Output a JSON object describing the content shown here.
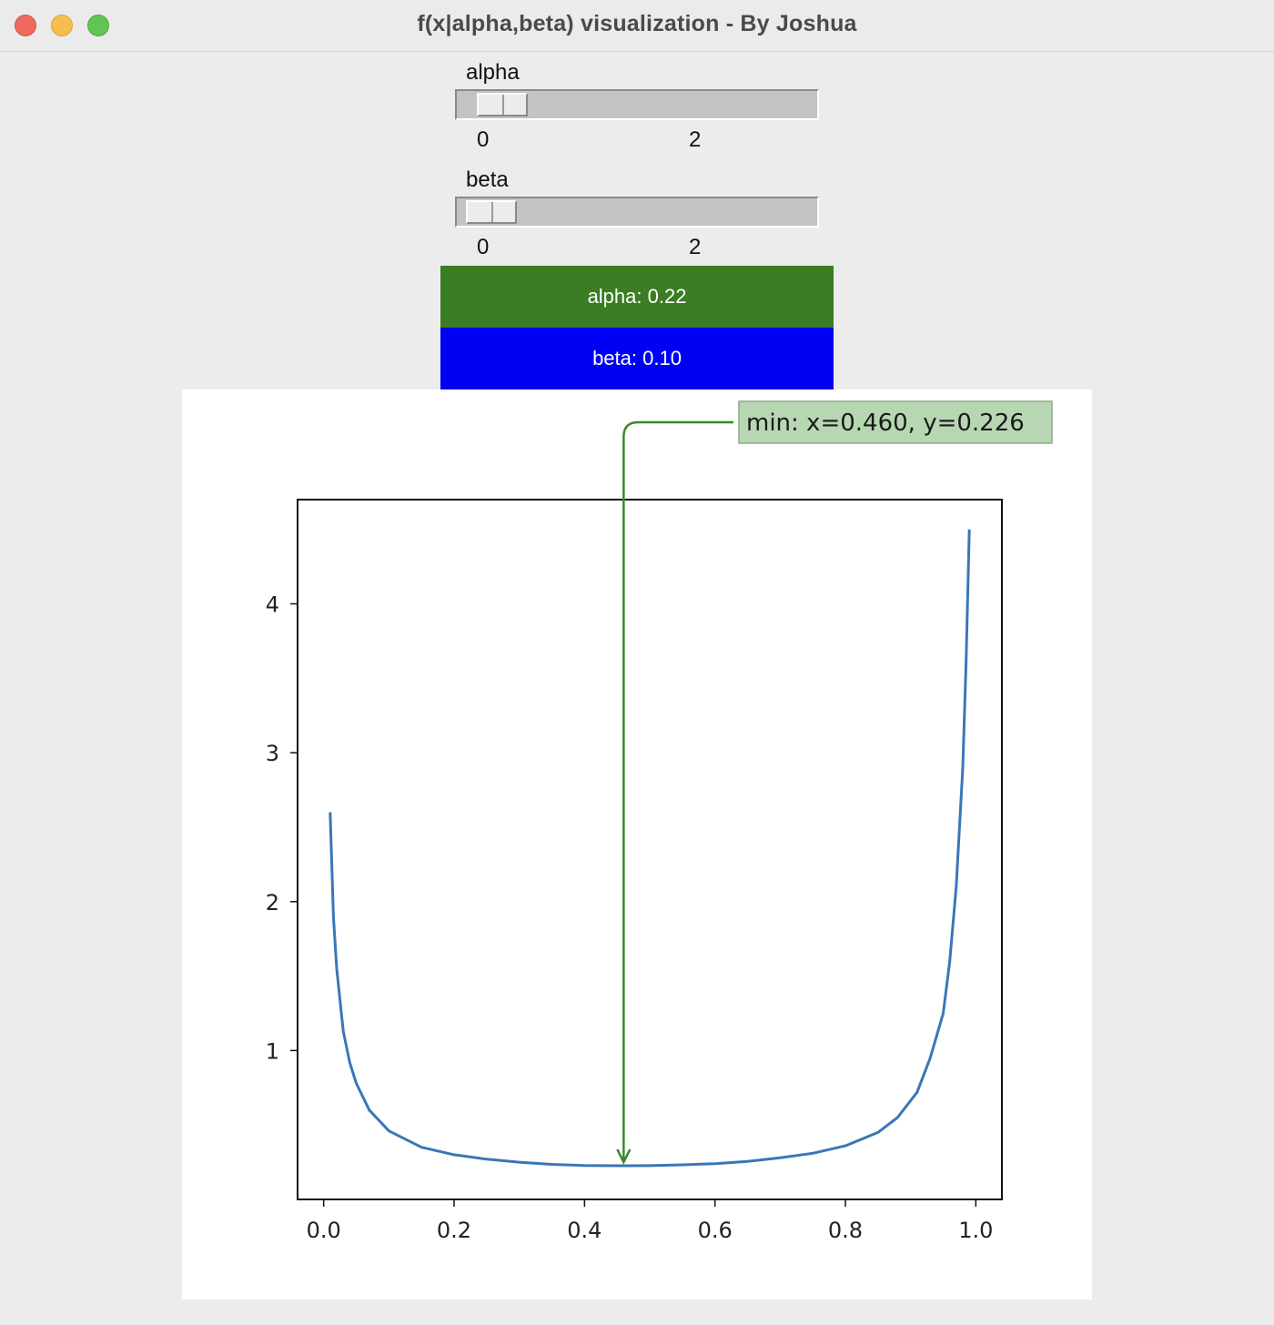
{
  "window": {
    "title": "f(x|alpha,beta) visualization - By Joshua"
  },
  "sliders": [
    {
      "label": "alpha",
      "value": 0.22,
      "min": 0,
      "max": 3.4,
      "ticks": [
        "0",
        "2"
      ]
    },
    {
      "label": "beta",
      "value": 0.1,
      "min": 0,
      "max": 3.4,
      "ticks": [
        "0",
        "2"
      ]
    }
  ],
  "info": {
    "alpha_text": "alpha: 0.22",
    "beta_text": "beta: 0.10",
    "alpha_color": "#3a7d22",
    "beta_color": "#0000f5"
  },
  "chart_data": {
    "type": "line",
    "title": "",
    "xlabel": "",
    "ylabel": "",
    "xlim": [
      -0.04,
      1.04
    ],
    "ylim": [
      0.0,
      4.7
    ],
    "xticks": [
      0.0,
      0.2,
      0.4,
      0.6,
      0.8,
      1.0
    ],
    "xtick_labels": [
      "0.0",
      "0.2",
      "0.4",
      "0.6",
      "0.8",
      "1.0"
    ],
    "yticks": [
      1,
      2,
      3,
      4
    ],
    "ytick_labels": [
      "1",
      "2",
      "3",
      "4"
    ],
    "grid": false,
    "line_color": "#3a76b8",
    "series": [
      {
        "x": [
          0.01,
          0.015,
          0.02,
          0.03,
          0.04,
          0.05,
          0.07,
          0.1,
          0.15,
          0.2,
          0.25,
          0.3,
          0.35,
          0.4,
          0.46,
          0.5,
          0.55,
          0.6,
          0.65,
          0.7,
          0.75,
          0.8,
          0.85,
          0.88,
          0.91,
          0.93,
          0.95,
          0.96,
          0.97,
          0.98,
          0.985,
          0.99
        ],
        "y": [
          2.6,
          1.9,
          1.55,
          1.13,
          0.92,
          0.78,
          0.6,
          0.46,
          0.35,
          0.3,
          0.27,
          0.25,
          0.235,
          0.228,
          0.226,
          0.227,
          0.232,
          0.24,
          0.255,
          0.28,
          0.31,
          0.36,
          0.45,
          0.55,
          0.72,
          0.95,
          1.25,
          1.6,
          2.1,
          2.9,
          3.6,
          4.5
        ]
      }
    ],
    "annotation": {
      "text": "min: x=0.460, y=0.226",
      "x": 0.46,
      "y": 0.226,
      "color": "#3a8a2a",
      "box_fill": "#b7d7b3"
    }
  }
}
